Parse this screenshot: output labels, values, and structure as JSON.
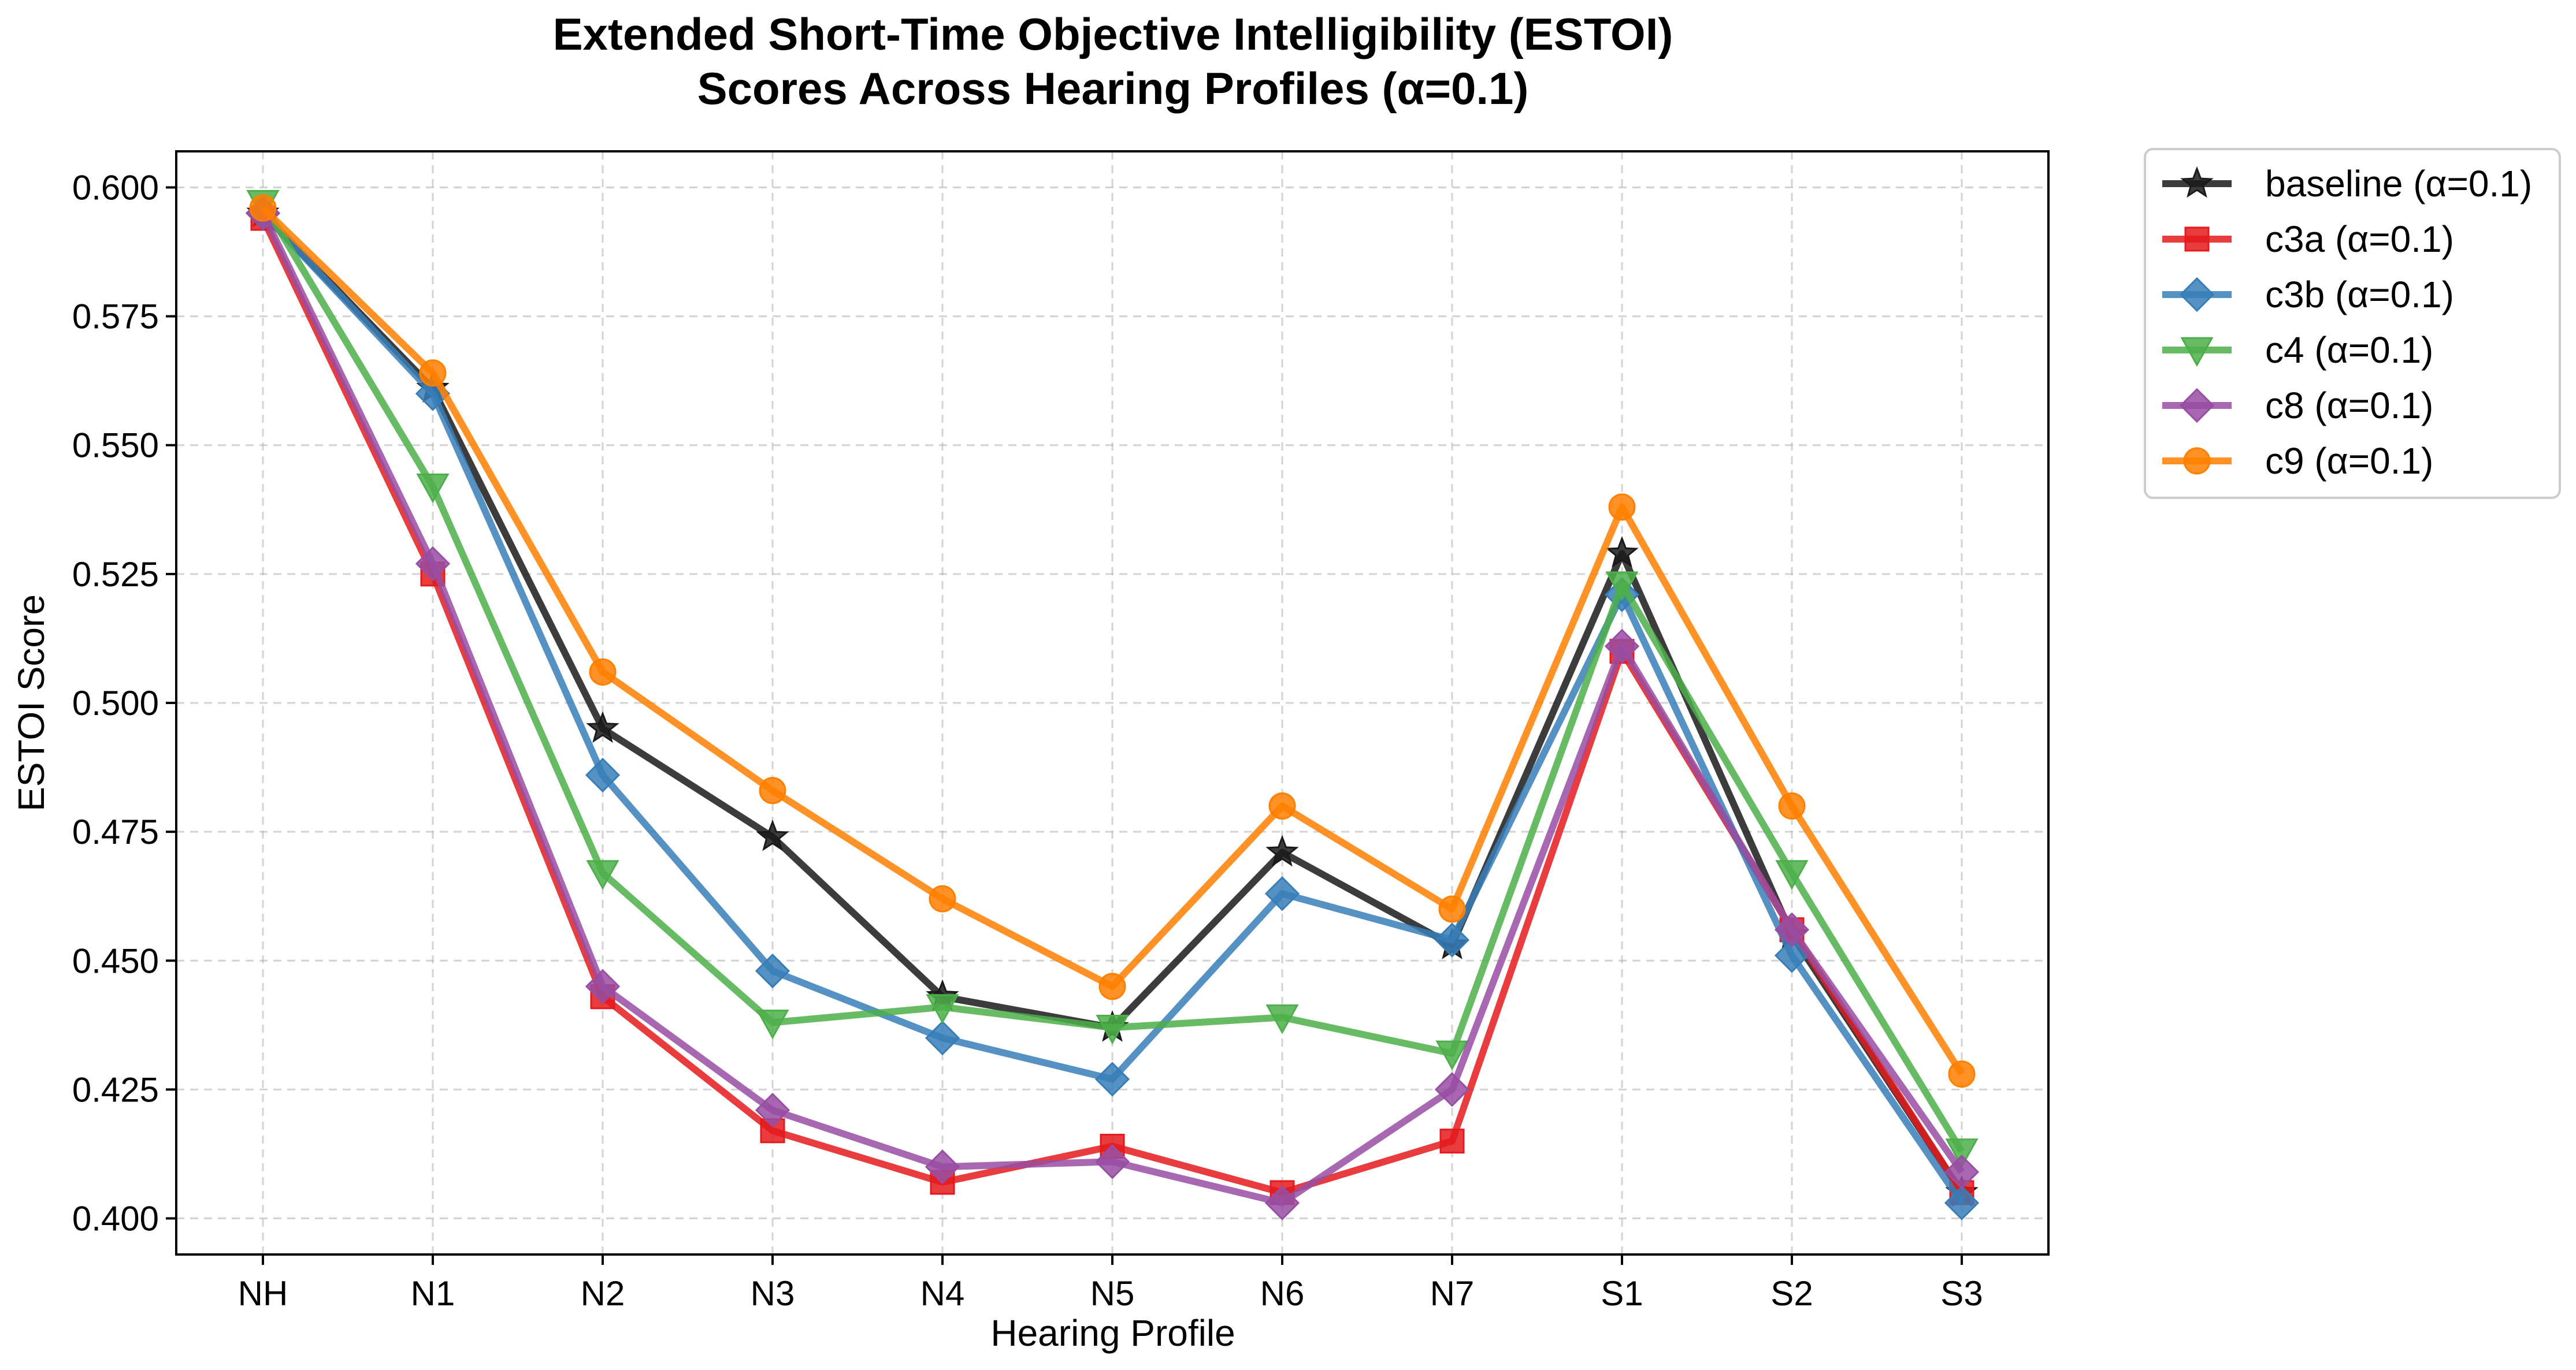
{
  "chart_data": {
    "type": "line",
    "title": "Extended Short-Time Objective Intelligibility (ESTOI)",
    "subtitle": "Scores Across Hearing Profiles (α=0.1)",
    "xlabel": "Hearing Profile",
    "ylabel": "ESTOI Score",
    "categories": [
      "NH",
      "N1",
      "N2",
      "N3",
      "N4",
      "N5",
      "N6",
      "N7",
      "S1",
      "S2",
      "S3"
    ],
    "ylim": [
      0.393,
      0.607
    ],
    "yticks": [
      0.4,
      0.425,
      0.45,
      0.475,
      0.5,
      0.525,
      0.55,
      0.575,
      0.6
    ],
    "ytick_labels": [
      "0.400",
      "0.425",
      "0.450",
      "0.475",
      "0.500",
      "0.525",
      "0.550",
      "0.575",
      "0.600"
    ],
    "grid": true,
    "legend_position": "outside-right-top",
    "series": [
      {
        "name": "baseline (α=0.1)",
        "color": "#1a1a1a",
        "marker": "star",
        "values": [
          0.595,
          0.561,
          0.495,
          0.474,
          0.443,
          0.437,
          0.471,
          0.453,
          0.529,
          0.455,
          0.405
        ]
      },
      {
        "name": "c3a (α=0.1)",
        "color": "#e41a1c",
        "marker": "square",
        "values": [
          0.594,
          0.525,
          0.443,
          0.417,
          0.407,
          0.414,
          0.405,
          0.415,
          0.51,
          0.456,
          0.405
        ]
      },
      {
        "name": "c3b (α=0.1)",
        "color": "#377eb8",
        "marker": "diamond",
        "values": [
          0.595,
          0.56,
          0.486,
          0.448,
          0.435,
          0.427,
          0.463,
          0.454,
          0.521,
          0.451,
          0.403
        ]
      },
      {
        "name": "c4 (α=0.1)",
        "color": "#4daf4a",
        "marker": "triangle-down",
        "values": [
          0.597,
          0.542,
          0.467,
          0.438,
          0.441,
          0.437,
          0.439,
          0.432,
          0.523,
          0.467,
          0.413
        ]
      },
      {
        "name": "c8 (α=0.1)",
        "color": "#984ea3",
        "marker": "diamond",
        "values": [
          0.595,
          0.527,
          0.445,
          0.421,
          0.41,
          0.411,
          0.403,
          0.425,
          0.511,
          0.456,
          0.409
        ]
      },
      {
        "name": "c9 (α=0.1)",
        "color": "#ff7f00",
        "marker": "circle",
        "values": [
          0.596,
          0.564,
          0.506,
          0.483,
          0.462,
          0.445,
          0.48,
          0.46,
          0.538,
          0.48,
          0.428
        ]
      }
    ]
  }
}
